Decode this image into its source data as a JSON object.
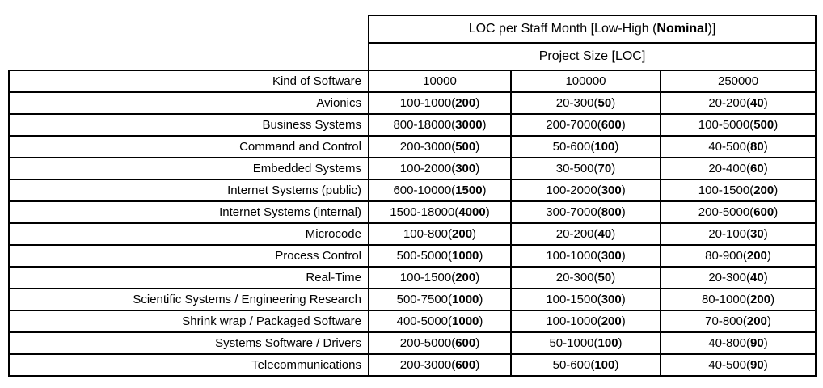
{
  "table": {
    "title_prefix": "LOC per Staff Month [Low-High (",
    "title_bold": "Nominal",
    "title_suffix": ")]",
    "subtitle": "Project Size [LOC]",
    "row_header_label": "Kind of Software",
    "columns": [
      "10000",
      "100000",
      "250000"
    ],
    "rows": [
      {
        "label": "Avionics",
        "cells": [
          {
            "range": "100-1000",
            "nominal": "200"
          },
          {
            "range": "20-300",
            "nominal": "50"
          },
          {
            "range": "20-200",
            "nominal": "40"
          }
        ]
      },
      {
        "label": "Business Systems",
        "cells": [
          {
            "range": "800-18000",
            "nominal": "3000"
          },
          {
            "range": "200-7000",
            "nominal": "600"
          },
          {
            "range": "100-5000",
            "nominal": "500"
          }
        ]
      },
      {
        "label": "Command and Control",
        "cells": [
          {
            "range": "200-3000",
            "nominal": "500"
          },
          {
            "range": "50-600",
            "nominal": "100"
          },
          {
            "range": "40-500",
            "nominal": "80"
          }
        ]
      },
      {
        "label": "Embedded Systems",
        "cells": [
          {
            "range": "100-2000",
            "nominal": "300"
          },
          {
            "range": "30-500",
            "nominal": "70"
          },
          {
            "range": "20-400",
            "nominal": "60"
          }
        ]
      },
      {
        "label": "Internet Systems (public)",
        "cells": [
          {
            "range": "600-10000",
            "nominal": "1500"
          },
          {
            "range": "100-2000",
            "nominal": "300"
          },
          {
            "range": "100-1500",
            "nominal": "200"
          }
        ]
      },
      {
        "label": "Internet Systems (internal)",
        "cells": [
          {
            "range": "1500-18000",
            "nominal": "4000"
          },
          {
            "range": "300-7000",
            "nominal": "800"
          },
          {
            "range": "200-5000",
            "nominal": "600"
          }
        ]
      },
      {
        "label": "Microcode",
        "cells": [
          {
            "range": "100-800",
            "nominal": "200"
          },
          {
            "range": "20-200",
            "nominal": "40"
          },
          {
            "range": "20-100",
            "nominal": "30"
          }
        ]
      },
      {
        "label": "Process Control",
        "cells": [
          {
            "range": "500-5000",
            "nominal": "1000"
          },
          {
            "range": "100-1000",
            "nominal": "300"
          },
          {
            "range": "80-900",
            "nominal": "200"
          }
        ]
      },
      {
        "label": "Real-Time",
        "cells": [
          {
            "range": "100-1500",
            "nominal": "200"
          },
          {
            "range": "20-300",
            "nominal": "50"
          },
          {
            "range": "20-300",
            "nominal": "40"
          }
        ]
      },
      {
        "label": "Scientific Systems / Engineering Research",
        "cells": [
          {
            "range": "500-7500",
            "nominal": "1000"
          },
          {
            "range": "100-1500",
            "nominal": "300"
          },
          {
            "range": "80-1000",
            "nominal": "200"
          }
        ]
      },
      {
        "label": "Shrink wrap / Packaged Software",
        "cells": [
          {
            "range": "400-5000",
            "nominal": "1000"
          },
          {
            "range": "100-1000",
            "nominal": "200"
          },
          {
            "range": "70-800",
            "nominal": "200"
          }
        ]
      },
      {
        "label": "Systems Software / Drivers",
        "cells": [
          {
            "range": "200-5000",
            "nominal": "600"
          },
          {
            "range": "50-1000",
            "nominal": "100"
          },
          {
            "range": "40-800",
            "nominal": "90"
          }
        ]
      },
      {
        "label": "Telecommunications",
        "cells": [
          {
            "range": "200-3000",
            "nominal": "600"
          },
          {
            "range": "50-600",
            "nominal": "100"
          },
          {
            "range": "40-500",
            "nominal": "90"
          }
        ]
      }
    ]
  }
}
